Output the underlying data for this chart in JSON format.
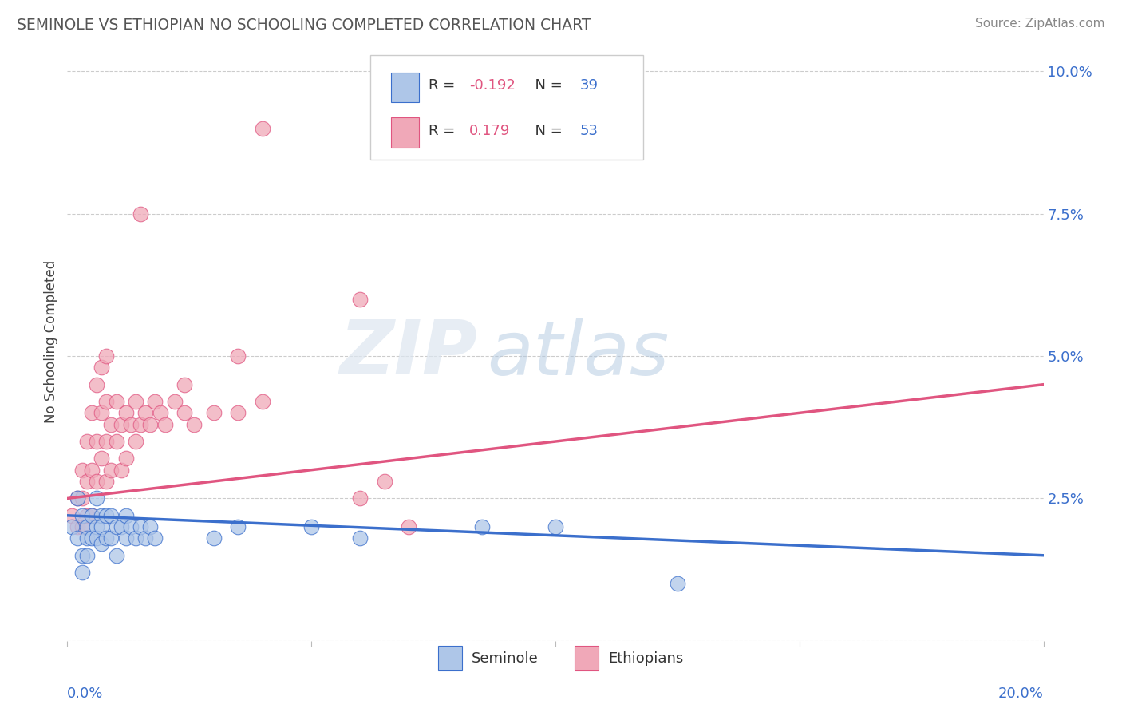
{
  "title": "SEMINOLE VS ETHIOPIAN NO SCHOOLING COMPLETED CORRELATION CHART",
  "source": "Source: ZipAtlas.com",
  "ylabel": "No Schooling Completed",
  "xlim": [
    0.0,
    0.2
  ],
  "ylim": [
    0.0,
    0.105
  ],
  "ytick_vals": [
    0.0,
    0.025,
    0.05,
    0.075,
    0.1
  ],
  "ytick_labels": [
    "",
    "2.5%",
    "5.0%",
    "7.5%",
    "10.0%"
  ],
  "xtick_vals": [
    0.0,
    0.05,
    0.1,
    0.15,
    0.2
  ],
  "watermark_zip": "ZIP",
  "watermark_atlas": "atlas",
  "legend_r_seminole": "-0.192",
  "legend_n_seminole": "39",
  "legend_r_ethiopian": "0.179",
  "legend_n_ethiopian": "53",
  "seminole_color": "#aec6e8",
  "ethiopian_color": "#f0a8b8",
  "seminole_line_color": "#3b6fcc",
  "ethiopian_line_color": "#e05580",
  "background_color": "#ffffff",
  "grid_color": "#cccccc",
  "seminole_scatter": [
    [
      0.001,
      0.02
    ],
    [
      0.002,
      0.025
    ],
    [
      0.002,
      0.018
    ],
    [
      0.003,
      0.022
    ],
    [
      0.003,
      0.015
    ],
    [
      0.003,
      0.012
    ],
    [
      0.004,
      0.02
    ],
    [
      0.004,
      0.018
    ],
    [
      0.004,
      0.015
    ],
    [
      0.005,
      0.022
    ],
    [
      0.005,
      0.018
    ],
    [
      0.006,
      0.025
    ],
    [
      0.006,
      0.02
    ],
    [
      0.006,
      0.018
    ],
    [
      0.007,
      0.022
    ],
    [
      0.007,
      0.02
    ],
    [
      0.007,
      0.017
    ],
    [
      0.008,
      0.022
    ],
    [
      0.008,
      0.018
    ],
    [
      0.009,
      0.022
    ],
    [
      0.009,
      0.018
    ],
    [
      0.01,
      0.02
    ],
    [
      0.01,
      0.015
    ],
    [
      0.011,
      0.02
    ],
    [
      0.012,
      0.022
    ],
    [
      0.012,
      0.018
    ],
    [
      0.013,
      0.02
    ],
    [
      0.014,
      0.018
    ],
    [
      0.015,
      0.02
    ],
    [
      0.016,
      0.018
    ],
    [
      0.017,
      0.02
    ],
    [
      0.018,
      0.018
    ],
    [
      0.03,
      0.018
    ],
    [
      0.035,
      0.02
    ],
    [
      0.05,
      0.02
    ],
    [
      0.06,
      0.018
    ],
    [
      0.085,
      0.02
    ],
    [
      0.1,
      0.02
    ],
    [
      0.125,
      0.01
    ]
  ],
  "ethiopian_scatter": [
    [
      0.001,
      0.022
    ],
    [
      0.002,
      0.025
    ],
    [
      0.002,
      0.02
    ],
    [
      0.003,
      0.03
    ],
    [
      0.003,
      0.025
    ],
    [
      0.003,
      0.02
    ],
    [
      0.004,
      0.035
    ],
    [
      0.004,
      0.028
    ],
    [
      0.004,
      0.022
    ],
    [
      0.005,
      0.04
    ],
    [
      0.005,
      0.03
    ],
    [
      0.005,
      0.022
    ],
    [
      0.006,
      0.045
    ],
    [
      0.006,
      0.035
    ],
    [
      0.006,
      0.028
    ],
    [
      0.007,
      0.048
    ],
    [
      0.007,
      0.04
    ],
    [
      0.007,
      0.032
    ],
    [
      0.008,
      0.05
    ],
    [
      0.008,
      0.042
    ],
    [
      0.008,
      0.035
    ],
    [
      0.008,
      0.028
    ],
    [
      0.009,
      0.038
    ],
    [
      0.009,
      0.03
    ],
    [
      0.01,
      0.042
    ],
    [
      0.01,
      0.035
    ],
    [
      0.011,
      0.038
    ],
    [
      0.011,
      0.03
    ],
    [
      0.012,
      0.04
    ],
    [
      0.012,
      0.032
    ],
    [
      0.013,
      0.038
    ],
    [
      0.014,
      0.042
    ],
    [
      0.014,
      0.035
    ],
    [
      0.015,
      0.038
    ],
    [
      0.016,
      0.04
    ],
    [
      0.017,
      0.038
    ],
    [
      0.018,
      0.042
    ],
    [
      0.019,
      0.04
    ],
    [
      0.02,
      0.038
    ],
    [
      0.022,
      0.042
    ],
    [
      0.024,
      0.04
    ],
    [
      0.026,
      0.038
    ],
    [
      0.03,
      0.04
    ],
    [
      0.035,
      0.04
    ],
    [
      0.04,
      0.042
    ],
    [
      0.06,
      0.025
    ],
    [
      0.065,
      0.028
    ],
    [
      0.07,
      0.02
    ],
    [
      0.06,
      0.06
    ],
    [
      0.035,
      0.05
    ],
    [
      0.024,
      0.045
    ],
    [
      0.015,
      0.075
    ],
    [
      0.04,
      0.09
    ]
  ]
}
